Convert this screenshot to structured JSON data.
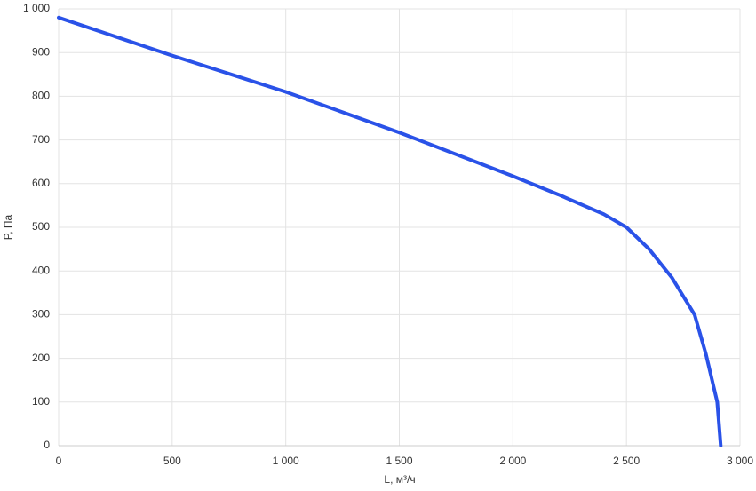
{
  "chart_data": {
    "type": "line",
    "x_label": "L, м³/ч",
    "y_label": "P, Па",
    "x": [
      0,
      500,
      1000,
      1500,
      2000,
      2200,
      2400,
      2500,
      2600,
      2700,
      2800,
      2850,
      2900,
      2915
    ],
    "values": [
      980,
      893,
      810,
      717,
      617,
      575,
      530,
      500,
      450,
      385,
      300,
      210,
      100,
      0
    ],
    "color": "#2a52e8",
    "xlim": [
      0,
      3000
    ],
    "xticks": [
      0,
      500,
      {
        "value": 1000,
        "label": "1 000"
      },
      {
        "value": 1500,
        "label": "1 500"
      },
      {
        "value": 2000,
        "label": "2 000"
      },
      {
        "value": 2500,
        "label": "2 500"
      },
      {
        "value": 3000,
        "label": "3 000"
      }
    ],
    "ylim": [
      0,
      1000
    ],
    "yticks": [
      0,
      100,
      200,
      300,
      400,
      500,
      600,
      700,
      800,
      900,
      {
        "value": 1000,
        "label": "1 000"
      }
    ],
    "grid": true
  }
}
